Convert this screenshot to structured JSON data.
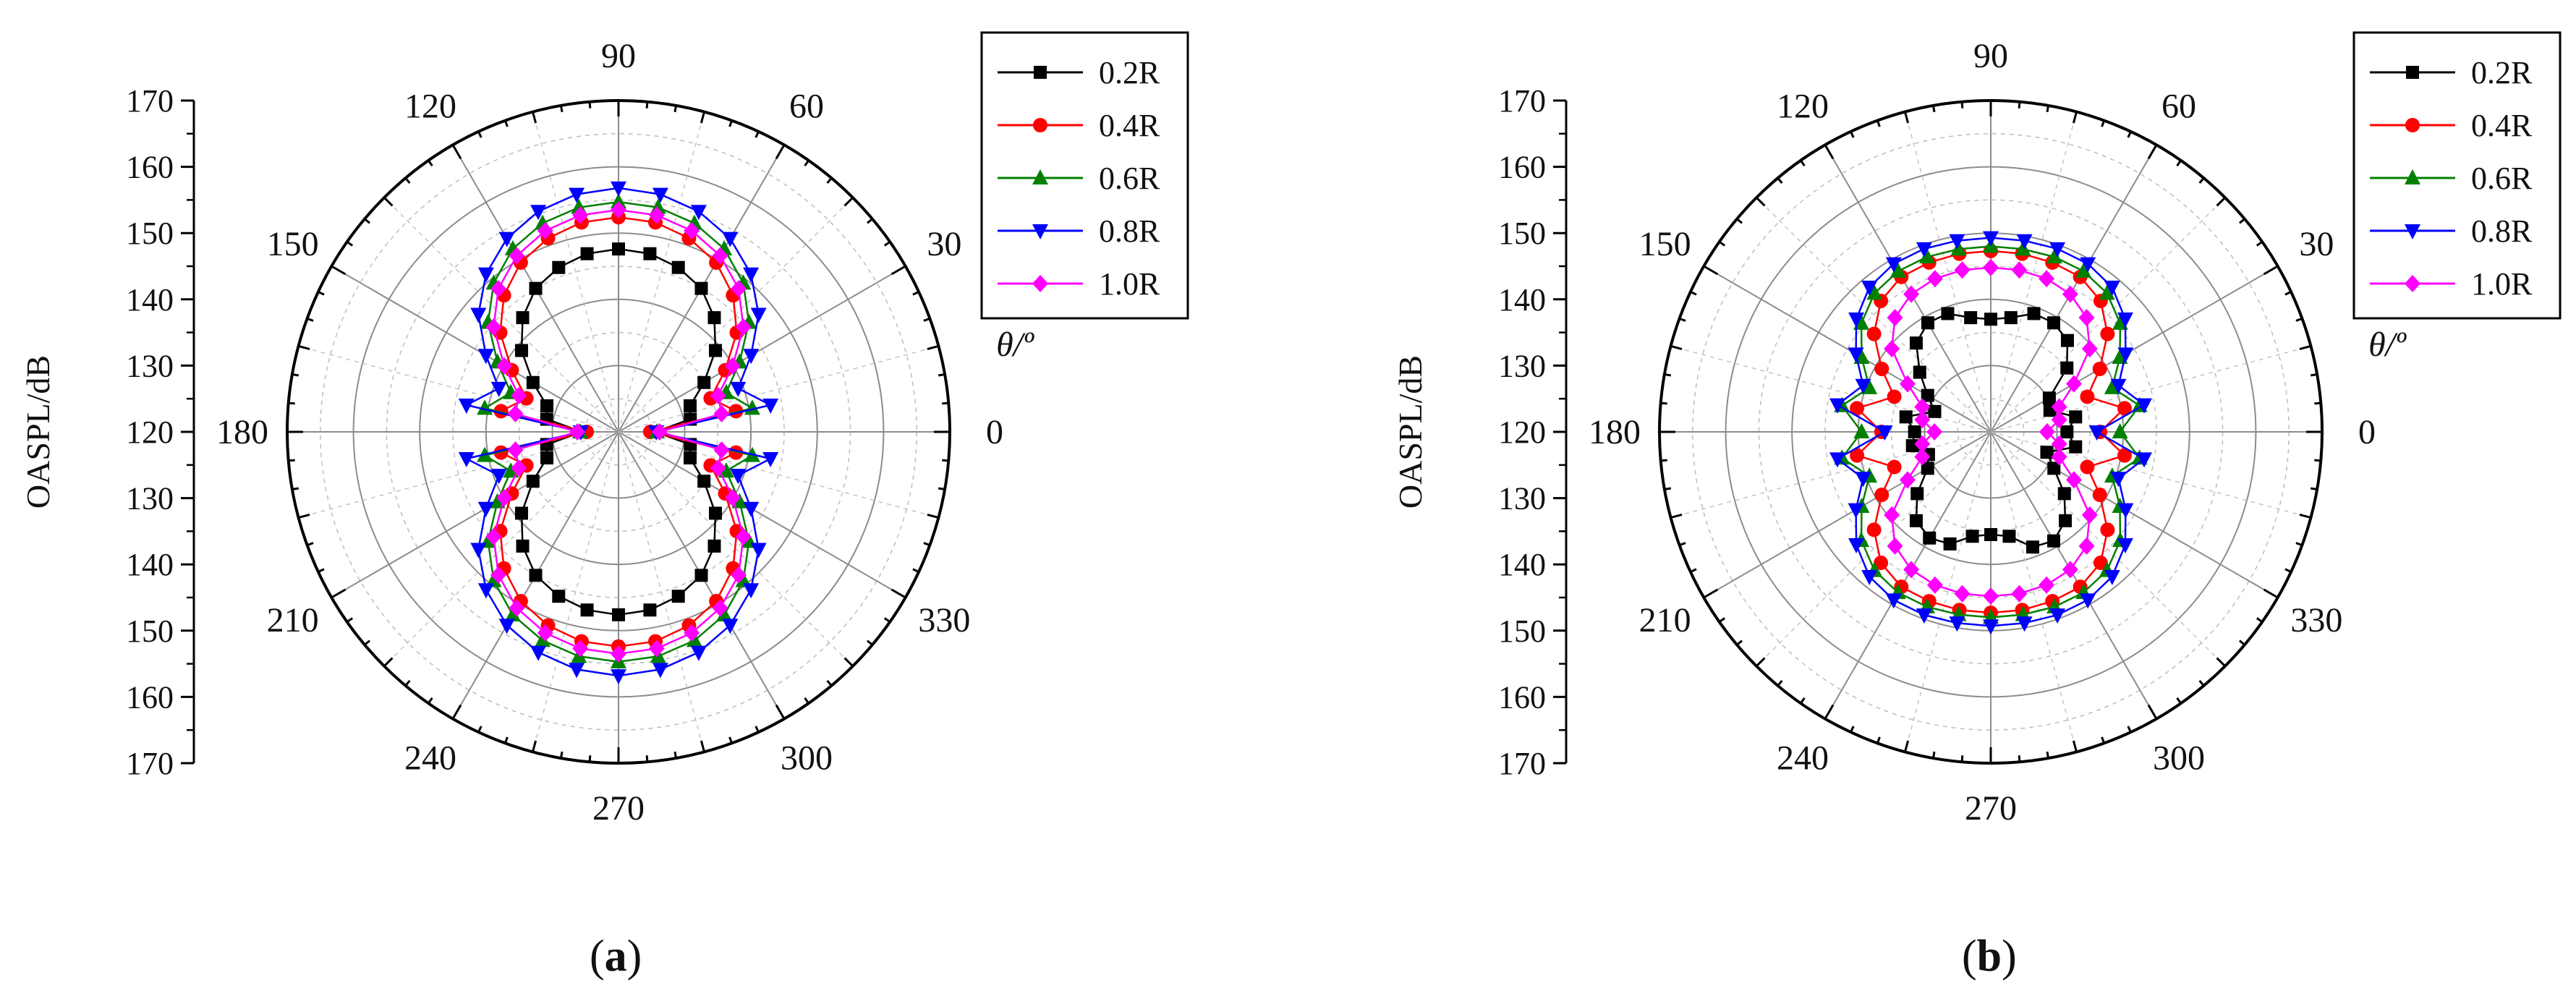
{
  "chart_data": [
    {
      "type": "polar-line",
      "panel_label_open": "(",
      "panel_label": "a",
      "panel_label_close": ")",
      "radial_axis_label": "OASPL/dB",
      "angular_axis_label": "θ/º",
      "radial_range": [
        120,
        170
      ],
      "radial_ticks": [
        170,
        160,
        150,
        140,
        130,
        120,
        130,
        140,
        150,
        160,
        170
      ],
      "angle_labels": [
        "0",
        "30",
        "60",
        "90",
        "120",
        "150",
        "180",
        "210",
        "240",
        "270",
        "300",
        "330"
      ],
      "grid": true,
      "legend_position": "top-right",
      "angles_deg": [
        0,
        10,
        20,
        30,
        40,
        50,
        60,
        70,
        80,
        90,
        100,
        110,
        120,
        130,
        140,
        150,
        160,
        170,
        180,
        190,
        200,
        210,
        220,
        230,
        240,
        250,
        260,
        270,
        280,
        290,
        300,
        310,
        320,
        330,
        340,
        350
      ],
      "series": [
        {
          "name": "0.2R",
          "color": "#000000",
          "marker": "square",
          "values": [
            125.5,
            131.0,
            131.5,
            134.9,
            139.1,
            142.5,
            145.0,
            146.4,
            147.3,
            147.6,
            147.3,
            146.4,
            145.0,
            142.5,
            139.1,
            134.9,
            131.5,
            131.0,
            125.5,
            131.0,
            131.5,
            134.9,
            139.1,
            142.5,
            145.0,
            146.4,
            147.3,
            147.6,
            147.3,
            146.4,
            145.0,
            142.5,
            139.1,
            134.9,
            131.5,
            131.0
          ]
        },
        {
          "name": "0.4R",
          "color": "#ff0000",
          "marker": "circle",
          "values": [
            124.8,
            138.0,
            134.8,
            138.6,
            143.3,
            146.9,
            149.5,
            151.1,
            152.1,
            152.4,
            152.1,
            151.1,
            149.5,
            146.9,
            143.3,
            138.6,
            134.8,
            138.0,
            124.8,
            138.0,
            134.8,
            138.6,
            143.3,
            146.9,
            149.5,
            151.1,
            152.1,
            152.4,
            152.1,
            151.1,
            149.5,
            146.9,
            143.3,
            138.6,
            134.8,
            138.0
          ]
        },
        {
          "name": "0.6R",
          "color": "#008000",
          "marker": "triangle-up",
          "values": [
            125.8,
            140.5,
            137.3,
            141.1,
            145.7,
            149.3,
            151.9,
            153.5,
            154.4,
            154.7,
            154.4,
            153.5,
            151.9,
            149.3,
            145.7,
            141.1,
            137.3,
            140.5,
            125.8,
            140.5,
            137.3,
            141.1,
            145.7,
            149.3,
            151.9,
            153.5,
            154.4,
            154.7,
            154.4,
            153.5,
            151.9,
            149.3,
            145.7,
            141.1,
            137.3,
            140.5
          ]
        },
        {
          "name": "0.8R",
          "color": "#0000ff",
          "marker": "triangle-down",
          "values": [
            125.7,
            143.3,
            139.2,
            143.1,
            147.6,
            151.1,
            153.7,
            155.4,
            156.4,
            156.8,
            156.4,
            155.4,
            153.7,
            151.1,
            147.6,
            143.1,
            139.2,
            143.3,
            125.7,
            143.3,
            139.2,
            143.1,
            147.6,
            151.1,
            153.7,
            155.4,
            156.4,
            156.8,
            156.4,
            155.4,
            153.7,
            151.1,
            147.6,
            143.1,
            139.2,
            143.3
          ]
        },
        {
          "name": "1.0R",
          "color": "#ff00ff",
          "marker": "diamond",
          "values": [
            126.2,
            135.8,
            136.0,
            139.9,
            144.6,
            148.2,
            150.7,
            152.3,
            153.2,
            153.5,
            153.2,
            152.3,
            150.7,
            148.2,
            144.6,
            139.9,
            136.0,
            135.8,
            126.2,
            135.8,
            136.0,
            139.9,
            144.6,
            148.2,
            150.7,
            152.3,
            153.2,
            153.5,
            153.2,
            152.3,
            150.7,
            148.2,
            144.6,
            139.9,
            136.0,
            135.8
          ]
        }
      ]
    },
    {
      "type": "polar-line",
      "panel_label_open": "(",
      "panel_label": "b",
      "panel_label_close": ")",
      "radial_axis_label": "OASPL/dB",
      "angular_axis_label": "θ/º",
      "radial_range": [
        120,
        170
      ],
      "radial_ticks": [
        170,
        160,
        150,
        140,
        130,
        120,
        130,
        140,
        150,
        160,
        170
      ],
      "angle_labels": [
        "0",
        "30",
        "60",
        "90",
        "120",
        "150",
        "180",
        "210",
        "240",
        "270",
        "300",
        "330"
      ],
      "grid": true,
      "legend_position": "top-right",
      "angles_deg": [
        0,
        10,
        20,
        30,
        40,
        50,
        60,
        70,
        80,
        90,
        100,
        110,
        120,
        130,
        140,
        150,
        160,
        170,
        180,
        190,
        200,
        210,
        220,
        230,
        240,
        250,
        260,
        270,
        280,
        290,
        300,
        310,
        320,
        330,
        340,
        350
      ],
      "series": [
        {
          "name": "0.2R",
          "color": "#000000",
          "marker": "square",
          "values": [
            131.5,
            133.0,
            129.5,
            130.2,
            135.0,
            138.0,
            139.0,
            139.0,
            137.5,
            137.0,
            137.5,
            139.0,
            139.0,
            137.5,
            134.0,
            131.0,
            129.0,
            133.0,
            131.5,
            132.0,
            130.0,
            131.0,
            134.5,
            137.5,
            138.5,
            138.0,
            136.0,
            135.5,
            136.0,
            138.5,
            139.0,
            137.5,
            134.5,
            131.0,
            129.0,
            133.0
          ]
        },
        {
          "name": "0.4R",
          "color": "#ff0000",
          "marker": "circle",
          "values": [
            136.5,
            140.5,
            135.5,
            139.0,
            143.0,
            145.8,
            147.0,
            147.2,
            147.3,
            147.3,
            147.3,
            147.2,
            147.0,
            145.8,
            143.0,
            139.0,
            135.5,
            140.5,
            136.5,
            140.5,
            135.5,
            139.0,
            143.0,
            145.8,
            147.0,
            147.2,
            147.3,
            147.3,
            147.3,
            147.2,
            147.0,
            145.8,
            143.0,
            139.0,
            135.5,
            140.5
          ]
        },
        {
          "name": "0.6R",
          "color": "#008000",
          "marker": "triangle-up",
          "values": [
            139.5,
            142.8,
            139.5,
            142.5,
            145.5,
            147.3,
            148.0,
            148.1,
            148.0,
            148.0,
            148.0,
            148.1,
            148.0,
            147.3,
            145.5,
            142.5,
            139.5,
            142.8,
            139.5,
            142.8,
            139.5,
            142.5,
            145.5,
            147.3,
            148.0,
            148.1,
            148.0,
            148.0,
            148.0,
            148.1,
            148.0,
            147.3,
            145.5,
            142.5,
            139.5,
            142.8
          ]
        },
        {
          "name": "0.8R",
          "color": "#0000ff",
          "marker": "triangle-down",
          "values": [
            136.0,
            143.5,
            140.5,
            143.5,
            146.5,
            148.5,
            149.3,
            149.4,
            149.3,
            149.3,
            149.3,
            149.4,
            149.3,
            148.5,
            146.5,
            143.5,
            140.5,
            143.5,
            136.0,
            143.5,
            140.5,
            143.5,
            146.5,
            148.5,
            149.3,
            149.4,
            149.3,
            149.3,
            149.3,
            149.4,
            149.3,
            148.5,
            146.5,
            143.5,
            140.5,
            143.5
          ]
        },
        {
          "name": "1.0R",
          "color": "#ff00ff",
          "marker": "diamond",
          "values": [
            128.5,
            130.5,
            131.0,
            134.5,
            139.5,
            142.5,
            144.0,
            144.6,
            144.8,
            144.8,
            144.8,
            144.6,
            144.0,
            142.5,
            139.5,
            134.5,
            131.0,
            130.5,
            128.5,
            130.5,
            131.0,
            134.5,
            139.5,
            142.5,
            144.0,
            144.6,
            144.8,
            144.8,
            144.8,
            144.6,
            144.0,
            142.5,
            139.5,
            134.5,
            131.0,
            130.5
          ]
        }
      ]
    }
  ]
}
